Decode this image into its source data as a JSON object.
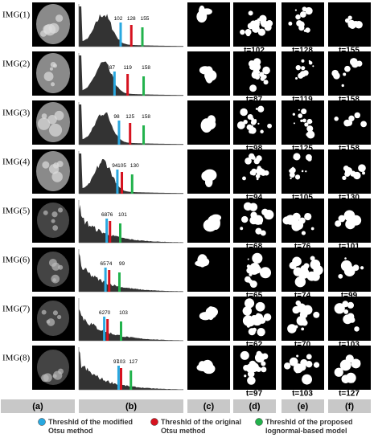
{
  "figure": {
    "xlim": [
      0,
      255
    ],
    "rows": [
      {
        "label": "IMG(1)",
        "thresholds": [
          102,
          128,
          155
        ],
        "t_labels": [
          "t=102",
          "t=128",
          "t=155"
        ]
      },
      {
        "label": "IMG(2)",
        "thresholds": [
          87,
          119,
          158
        ],
        "t_labels": [
          "t=87",
          "t=119",
          "t=158"
        ]
      },
      {
        "label": "IMG(3)",
        "thresholds": [
          98,
          125,
          158
        ],
        "t_labels": [
          "t=98",
          "t=125",
          "t=158"
        ]
      },
      {
        "label": "IMG(4)",
        "thresholds": [
          94,
          105,
          130
        ],
        "t_labels": [
          "t=94",
          "t=105",
          "t=130"
        ]
      },
      {
        "label": "IMG(5)",
        "thresholds": [
          68,
          76,
          101
        ],
        "t_labels": [
          "t=68",
          "t=76",
          "t=101"
        ]
      },
      {
        "label": "IMG(6)",
        "thresholds": [
          65,
          74,
          99
        ],
        "t_labels": [
          "t=65",
          "t=74",
          "t=99"
        ]
      },
      {
        "label": "IMG(7)",
        "thresholds": [
          62,
          70,
          103
        ],
        "t_labels": [
          "t=62",
          "t=70",
          "t=103"
        ]
      },
      {
        "label": "IMG(8)",
        "thresholds": [
          97,
          103,
          127
        ],
        "t_labels": [
          "t=97",
          "t=103",
          "t=127"
        ]
      }
    ],
    "columns": [
      "(a)",
      "(b)",
      "(c)",
      "(d)",
      "(e)",
      "(f)"
    ],
    "legend": [
      {
        "lines": [
          "Threshld of the modified",
          "Otsu method"
        ],
        "color": "#29a8e0"
      },
      {
        "lines": [
          "Threshld of the original",
          "Otsu method"
        ],
        "color": "#d6121f"
      },
      {
        "lines": [
          "Threshld of the proposed",
          "lognormal-based model"
        ],
        "color": "#22b24c"
      }
    ]
  }
}
